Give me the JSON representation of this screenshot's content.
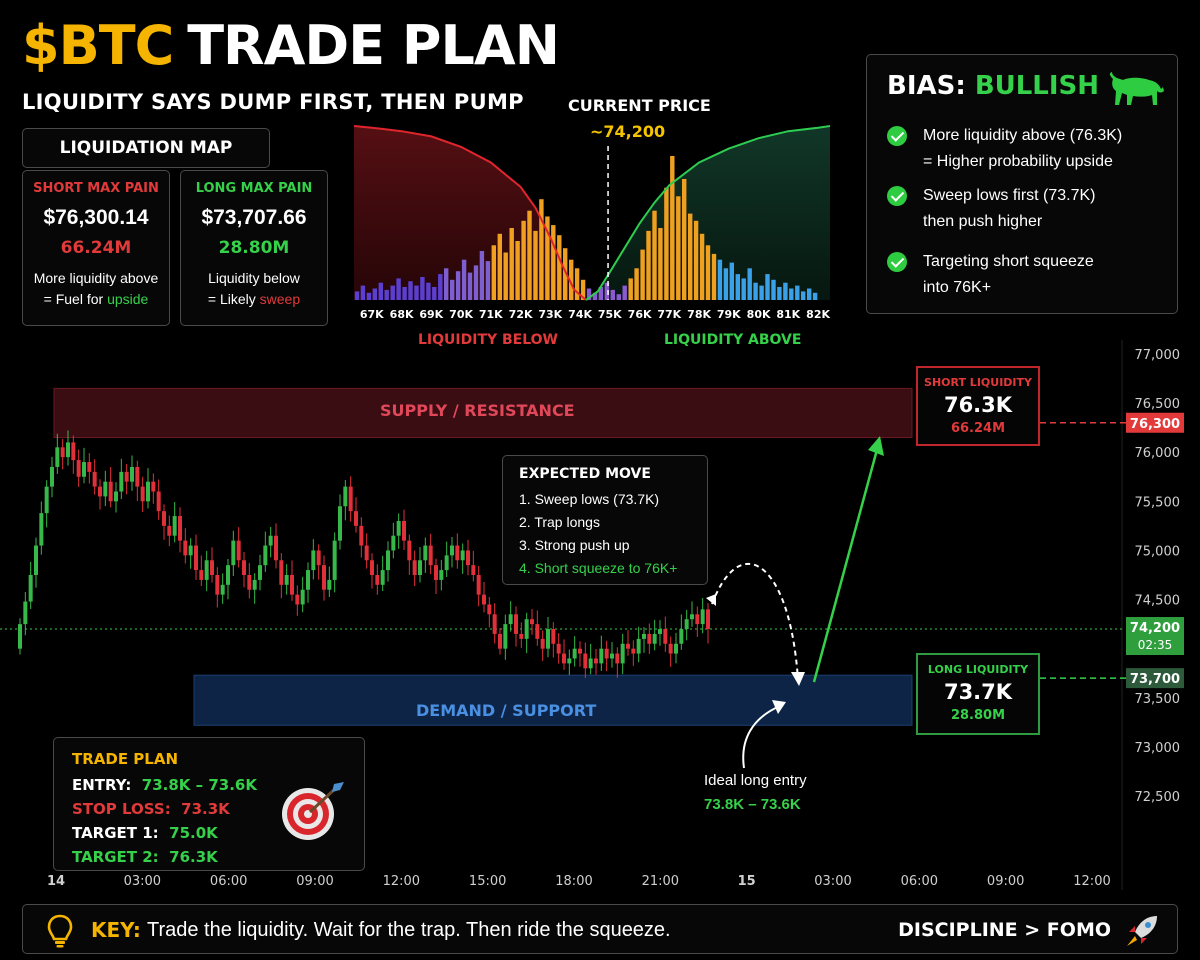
{
  "header": {
    "title_ticker": "$BTC",
    "title_rest": "TRADE PLAN",
    "subtitle": "LIQUIDITY SAYS DUMP FIRST, THEN PUMP"
  },
  "liq_map": {
    "header": "LIQUIDATION MAP",
    "short": {
      "heading": "SHORT MAX PAIN",
      "price": "$76,300.14",
      "volume": "66.24M",
      "note_line1": "More liquidity above",
      "note_prefix": "= Fuel for",
      "note_highlight": "upside"
    },
    "long": {
      "heading": "LONG MAX PAIN",
      "price": "$73,707.66",
      "volume": "28.80M",
      "note_line1": "Liquidity below",
      "note_prefix": "= Likely",
      "note_highlight": "sweep"
    },
    "current_price_label": "CURRENT PRICE",
    "current_price_value": "~74,200",
    "liquidity_below_label": "LIQUIDITY BELOW",
    "liquidity_above_label": "LIQUIDITY ABOVE",
    "x_ticks": [
      "67K",
      "68K",
      "69K",
      "70K",
      "71K",
      "72K",
      "73K",
      "74K",
      "75K",
      "76K",
      "77K",
      "78K",
      "79K",
      "80K",
      "81K",
      "82K"
    ]
  },
  "bias": {
    "label": "BIAS:",
    "value": "BULLISH",
    "icon": "bull-icon",
    "items": [
      {
        "line1": "More liquidity above (76.3K)",
        "line2": "= Higher probability upside"
      },
      {
        "line1": "Sweep lows first (73.7K)",
        "line2": "then push higher"
      },
      {
        "line1": "Targeting short squeeze",
        "line2": "into 76K+"
      }
    ]
  },
  "zones": {
    "supply": "SUPPLY / RESISTANCE",
    "demand": "DEMAND / SUPPORT"
  },
  "short_liq_box": {
    "label": "SHORT LIQUIDITY",
    "price": "76.3K",
    "volume": "66.24M"
  },
  "long_liq_box": {
    "label": "LONG LIQUIDITY",
    "price": "73.7K",
    "volume": "28.80M"
  },
  "expected_move": {
    "title": "EXPECTED MOVE",
    "steps": [
      "1.  Sweep lows (73.7K)",
      "2.  Trap longs",
      "3.  Strong push up",
      "4.  Short squeeze to 76K+"
    ]
  },
  "ideal_entry": {
    "label": "Ideal long entry",
    "range": "73.8K – 73.6K"
  },
  "trade_plan": {
    "title": "TRADE PLAN",
    "entry_label": "ENTRY:",
    "entry_value": "73.8K – 73.6K",
    "stop_label": "STOP LOSS:",
    "stop_value": "73.3K",
    "t1_label": "TARGET 1:",
    "t1_value": "75.0K",
    "t2_label": "TARGET 2:",
    "t2_value": "76.3K",
    "icon": "target-icon"
  },
  "key_bar": {
    "key_label": "KEY:",
    "key_text": "Trade the liquidity. Wait for the trap. Then ride the squeeze.",
    "motto": "DISCIPLINE > FOMO",
    "icons": [
      "lightbulb-icon",
      "rocket-icon"
    ]
  },
  "colors": {
    "gold": "#f5b400",
    "red": "#e23a3a",
    "green": "#36d14a",
    "supply_zone": "#3a0d10",
    "demand_zone": "#0d2a52",
    "demand_text": "#4a90e2"
  },
  "chart_data": [
    {
      "type": "area",
      "title": "LIQUIDATION MAP",
      "x_unit": "K",
      "x": [
        67,
        68,
        69,
        70,
        71,
        72,
        73,
        74,
        75,
        76,
        77,
        78,
        79,
        80,
        81,
        82
      ],
      "xlim": [
        66.4,
        82.4
      ],
      "series": [
        {
          "name": "LIQUIDITY BELOW",
          "x": [
            66.4,
            67,
            68,
            69,
            70,
            71,
            72,
            72.5,
            73,
            73.4,
            73.8,
            74.2
          ],
          "values": [
            1.0,
            0.99,
            0.97,
            0.94,
            0.88,
            0.79,
            0.65,
            0.53,
            0.36,
            0.2,
            0.06,
            0.0
          ]
        },
        {
          "name": "LIQUIDITY ABOVE",
          "x": [
            74.2,
            74.6,
            75,
            75.5,
            76,
            76.5,
            77,
            78,
            79,
            80,
            81,
            82,
            82.4
          ],
          "values": [
            0.0,
            0.05,
            0.16,
            0.3,
            0.44,
            0.56,
            0.66,
            0.79,
            0.87,
            0.93,
            0.97,
            0.99,
            1.0
          ]
        },
        {
          "name": "liquidation_bars",
          "x": [
            66.5,
            66.7,
            66.9,
            67.1,
            67.3,
            67.5,
            67.7,
            67.9,
            68.1,
            68.3,
            68.5,
            68.7,
            68.9,
            69.1,
            69.3,
            69.5,
            69.7,
            69.9,
            70.1,
            70.3,
            70.5,
            70.7,
            70.9,
            71.1,
            71.3,
            71.5,
            71.7,
            71.9,
            72.1,
            72.3,
            72.5,
            72.7,
            72.9,
            73.1,
            73.3,
            73.5,
            73.7,
            73.9,
            74.1,
            74.3,
            74.5,
            74.7,
            74.9,
            75.1,
            75.3,
            75.5,
            75.7,
            75.9,
            76.1,
            76.3,
            76.5,
            76.7,
            76.9,
            77.1,
            77.3,
            77.5,
            77.7,
            77.9,
            78.1,
            78.3,
            78.5,
            78.7,
            78.9,
            79.1,
            79.3,
            79.5,
            79.7,
            79.9,
            80.1,
            80.3,
            80.5,
            80.7,
            80.9,
            81.1,
            81.3,
            81.5,
            81.7,
            81.9
          ],
          "values": [
            0.06,
            0.1,
            0.05,
            0.08,
            0.12,
            0.07,
            0.1,
            0.15,
            0.09,
            0.13,
            0.1,
            0.16,
            0.12,
            0.09,
            0.18,
            0.22,
            0.14,
            0.2,
            0.28,
            0.19,
            0.24,
            0.34,
            0.27,
            0.38,
            0.46,
            0.33,
            0.5,
            0.41,
            0.55,
            0.62,
            0.48,
            0.7,
            0.58,
            0.52,
            0.45,
            0.36,
            0.28,
            0.22,
            0.14,
            0.08,
            0.05,
            0.09,
            0.12,
            0.07,
            0.04,
            0.1,
            0.15,
            0.22,
            0.35,
            0.48,
            0.62,
            0.5,
            0.78,
            1.0,
            0.72,
            0.84,
            0.6,
            0.55,
            0.46,
            0.38,
            0.32,
            0.28,
            0.22,
            0.26,
            0.18,
            0.15,
            0.22,
            0.12,
            0.1,
            0.18,
            0.14,
            0.09,
            0.12,
            0.08,
            0.1,
            0.06,
            0.08,
            0.05
          ]
        }
      ]
    },
    {
      "type": "candlestick",
      "y_ticks": [
        "77,000",
        "76,500",
        "76,000",
        "75,500",
        "75,000",
        "74,500",
        "74,000",
        "73,500",
        "73,000",
        "72,500"
      ],
      "ylim": [
        72100,
        77050
      ],
      "x_ticks": [
        "14",
        "03:00",
        "06:00",
        "09:00",
        "12:00",
        "15:00",
        "18:00",
        "21:00",
        "15",
        "03:00",
        "06:00",
        "09:00",
        "12:00"
      ],
      "price_tags": [
        {
          "value": 76300,
          "label": "76,300",
          "color": "#e23a3a"
        },
        {
          "value": 74200,
          "label": "74,200",
          "sublabel": "02:35",
          "color": "#2f9e3d"
        },
        {
          "value": 73700,
          "label": "73,700",
          "color": "#2d5a3a"
        }
      ],
      "zones": [
        {
          "name": "supply",
          "from": 76150,
          "to": 76650
        },
        {
          "name": "demand",
          "from": 73220,
          "to": 73730
        }
      ],
      "close": [
        74250,
        74480,
        74750,
        75050,
        75380,
        75650,
        75850,
        76050,
        75950,
        76100,
        75920,
        75750,
        75900,
        75800,
        75650,
        75550,
        75700,
        75500,
        75600,
        75800,
        75700,
        75850,
        75650,
        75500,
        75700,
        75600,
        75400,
        75250,
        75150,
        75350,
        75100,
        74950,
        75050,
        74800,
        74700,
        74900,
        74750,
        74550,
        74650,
        74850,
        75100,
        74900,
        74750,
        74600,
        74700,
        74850,
        75050,
        75150,
        74900,
        74650,
        74750,
        74550,
        74450,
        74600,
        74800,
        75000,
        74850,
        74600,
        74700,
        75100,
        75450,
        75650,
        75400,
        75250,
        75050,
        74900,
        74750,
        74650,
        74800,
        75000,
        75150,
        75300,
        75100,
        74900,
        74750,
        74900,
        75050,
        74850,
        74700,
        74800,
        74950,
        75050,
        74900,
        75000,
        74850,
        74750,
        74550,
        74450,
        74350,
        74150,
        74000,
        74250,
        74350,
        74150,
        74100,
        74300,
        74250,
        74100,
        74000,
        74200,
        74050,
        73950,
        73850,
        73900,
        74000,
        73950,
        73800,
        73900,
        73850,
        74000,
        73900,
        73950,
        73850,
        74050,
        74000,
        73950,
        74100,
        74150,
        74050,
        74150,
        74200,
        74050,
        73950,
        74050,
        74200,
        74300,
        74350,
        74250,
        74400,
        74200
      ]
    }
  ]
}
